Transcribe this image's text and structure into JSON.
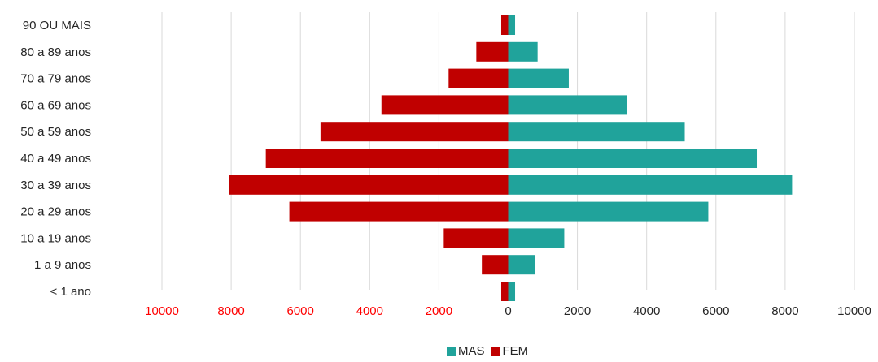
{
  "chart_data": {
    "type": "bar",
    "orientation": "horizontal",
    "layout": "population-pyramid",
    "categories": [
      "90 OU MAIS",
      "80 a 89 anos",
      "70 a 79 anos",
      "60 a 69 anos",
      "50 a 59 anos",
      "40 a 49 anos",
      "30 a 39 anos",
      "20 a 29 anos",
      "10 a 19 anos",
      "1 a 9 anos",
      "< 1 ano"
    ],
    "series": [
      {
        "name": "MAS",
        "side": "right",
        "color": "#20A39B",
        "values": [
          200,
          850,
          1750,
          3430,
          5100,
          7180,
          8200,
          5780,
          1620,
          780,
          200
        ]
      },
      {
        "name": "FEM",
        "side": "left",
        "color": "#C00000",
        "values": [
          200,
          920,
          1720,
          3660,
          5420,
          7000,
          8060,
          6320,
          1860,
          760,
          200
        ]
      }
    ],
    "xlim": [
      -10000,
      10000
    ],
    "x_ticks": [
      -10000,
      -8000,
      -6000,
      -4000,
      -2000,
      0,
      2000,
      4000,
      6000,
      8000,
      10000
    ],
    "x_tick_labels": [
      "10000",
      "8000",
      "6000",
      "4000",
      "2000",
      "0",
      "2000",
      "4000",
      "6000",
      "8000",
      "10000"
    ],
    "left_tick_color": "#FF0000",
    "right_tick_color": "#262626",
    "grid": true,
    "grid_color": "#D9D9D9",
    "legend": "bottom-center",
    "title": "",
    "xlabel": "",
    "ylabel": ""
  }
}
